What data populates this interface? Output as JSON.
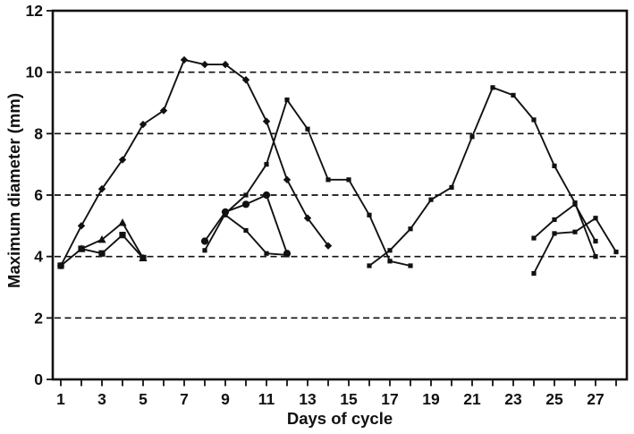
{
  "figure": {
    "background": "#ffffff",
    "ink_color": "#111111"
  },
  "chart_data": {
    "type": "line",
    "title": "",
    "xlabel": "Days of cycle",
    "ylabel": "Maximum diameter (mm)",
    "xlim": [
      0.6,
      28.6
    ],
    "ylim": [
      0,
      12
    ],
    "x_tick_days": [
      1,
      2,
      3,
      4,
      5,
      6,
      7,
      8,
      9,
      10,
      11,
      12,
      13,
      14,
      15,
      16,
      17,
      18,
      19,
      20,
      21,
      22,
      23,
      24,
      25,
      26,
      27,
      28
    ],
    "x_labeled_days": [
      1,
      3,
      5,
      7,
      9,
      11,
      13,
      15,
      17,
      19,
      21,
      23,
      25,
      27
    ],
    "y_ticks": [
      0,
      2,
      4,
      6,
      8,
      10,
      12
    ],
    "gridlines_y": [
      2,
      4,
      6,
      8,
      10
    ],
    "grid_style": "dashed",
    "legend": "none",
    "line_color": "#111111",
    "series": [
      {
        "name": "wave1-dominant-follicle",
        "marker": "diamond",
        "points": [
          [
            1,
            3.7
          ],
          [
            2,
            5.0
          ],
          [
            3,
            6.2
          ],
          [
            4,
            7.15
          ],
          [
            5,
            8.3
          ],
          [
            6,
            8.75
          ],
          [
            7,
            10.4
          ],
          [
            8,
            10.25
          ],
          [
            9,
            10.25
          ],
          [
            10,
            9.75
          ],
          [
            11,
            8.4
          ],
          [
            12,
            6.5
          ],
          [
            13,
            5.25
          ],
          [
            14,
            4.35
          ]
        ]
      },
      {
        "name": "wave1-subordinate-square",
        "marker": "square",
        "points": [
          [
            1,
            3.7
          ],
          [
            2,
            4.25
          ],
          [
            3,
            4.1
          ],
          [
            4,
            4.7
          ],
          [
            5,
            3.95
          ]
        ]
      },
      {
        "name": "wave1-subordinate-triangle",
        "marker": "triangle",
        "points": [
          [
            2,
            4.25
          ],
          [
            3,
            4.55
          ],
          [
            4,
            5.1
          ],
          [
            5,
            3.95
          ]
        ]
      },
      {
        "name": "wave2-dominant-follicle",
        "marker": "square-small",
        "points": [
          [
            8,
            4.2
          ],
          [
            9,
            5.4
          ],
          [
            10,
            6.0
          ],
          [
            11,
            7.0
          ],
          [
            12,
            9.1
          ],
          [
            13,
            8.15
          ],
          [
            14,
            6.5
          ],
          [
            15,
            6.5
          ],
          [
            16,
            5.35
          ],
          [
            17,
            3.85
          ],
          [
            18,
            3.7
          ]
        ]
      },
      {
        "name": "wave2-subordinate-circle",
        "marker": "circle",
        "points": [
          [
            8,
            4.5
          ],
          [
            9,
            5.45
          ],
          [
            10,
            5.7
          ],
          [
            11,
            6.0
          ],
          [
            12,
            4.1
          ]
        ]
      },
      {
        "name": "wave2-subordinate-2",
        "marker": "square-small",
        "points": [
          [
            9,
            5.35
          ],
          [
            10,
            4.85
          ],
          [
            11,
            4.1
          ],
          [
            12,
            4.05
          ]
        ]
      },
      {
        "name": "wave3-dominant-follicle",
        "marker": "square-small",
        "points": [
          [
            16,
            3.7
          ],
          [
            17,
            4.2
          ],
          [
            18,
            4.9
          ],
          [
            19,
            5.85
          ],
          [
            20,
            6.25
          ],
          [
            21,
            7.9
          ],
          [
            22,
            9.5
          ],
          [
            23,
            9.25
          ],
          [
            24,
            8.45
          ],
          [
            25,
            6.95
          ],
          [
            26,
            5.75
          ],
          [
            27,
            4.0
          ]
        ]
      },
      {
        "name": "wave3-subordinate-1",
        "marker": "square-small",
        "points": [
          [
            24,
            4.6
          ],
          [
            25,
            5.2
          ],
          [
            26,
            5.7
          ],
          [
            27,
            4.5
          ]
        ]
      },
      {
        "name": "wave3-subordinate-2",
        "marker": "square-small",
        "points": [
          [
            24,
            3.45
          ],
          [
            25,
            4.75
          ],
          [
            26,
            4.8
          ],
          [
            27,
            5.25
          ],
          [
            28,
            4.15
          ]
        ]
      }
    ]
  }
}
